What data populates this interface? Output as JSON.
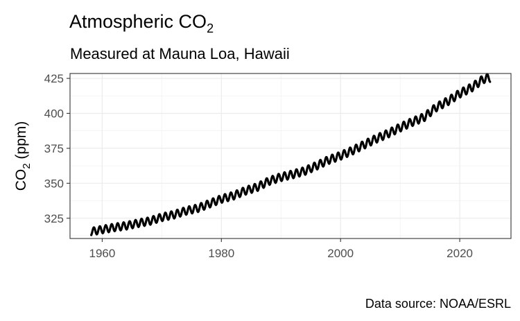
{
  "chart_data": {
    "type": "line",
    "title": "Atmospheric CO",
    "title_subscript": "2",
    "subtitle": "Measured at Mauna Loa, Hawaii",
    "xlabel": "",
    "ylabel_main": "CO",
    "ylabel_subscript": "2",
    "ylabel_suffix": " (ppm)",
    "caption": "Data source: NOAA/ESRL",
    "xlim": [
      1954.6,
      2028.6
    ],
    "ylim": [
      310.5,
      428.5
    ],
    "x_ticks": [
      1960,
      1980,
      2000,
      2020
    ],
    "x_tick_labels": [
      "1960",
      "1980",
      "2000",
      "2020"
    ],
    "y_ticks": [
      325,
      350,
      375,
      400,
      425
    ],
    "y_tick_labels": [
      "325",
      "350",
      "375",
      "400",
      "425"
    ],
    "grid": true,
    "line_color": "#000000",
    "series": [
      {
        "x": [
          1958,
          1960,
          1962,
          1964,
          1966,
          1968,
          1970,
          1972,
          1974,
          1976,
          1978,
          1980,
          1982,
          1984,
          1986,
          1988,
          1990,
          1992,
          1994,
          1996,
          1998,
          2000,
          2002,
          2004,
          2006,
          2008,
          2010,
          2012,
          2014,
          2016,
          2018,
          2020,
          2022,
          2024,
          2025
        ],
        "values": [
          315.3,
          316.9,
          318.4,
          319.6,
          321.4,
          323.0,
          325.7,
          327.5,
          330.2,
          332.1,
          335.4,
          338.8,
          341.1,
          344.6,
          347.2,
          351.6,
          354.4,
          356.4,
          358.8,
          362.6,
          366.7,
          369.7,
          373.4,
          377.7,
          381.9,
          385.6,
          389.9,
          393.8,
          397.2,
          404.2,
          408.7,
          414.2,
          418.5,
          424.6,
          425.5
        ],
        "seasonal_amplitude_ppm": 3
      }
    ]
  }
}
